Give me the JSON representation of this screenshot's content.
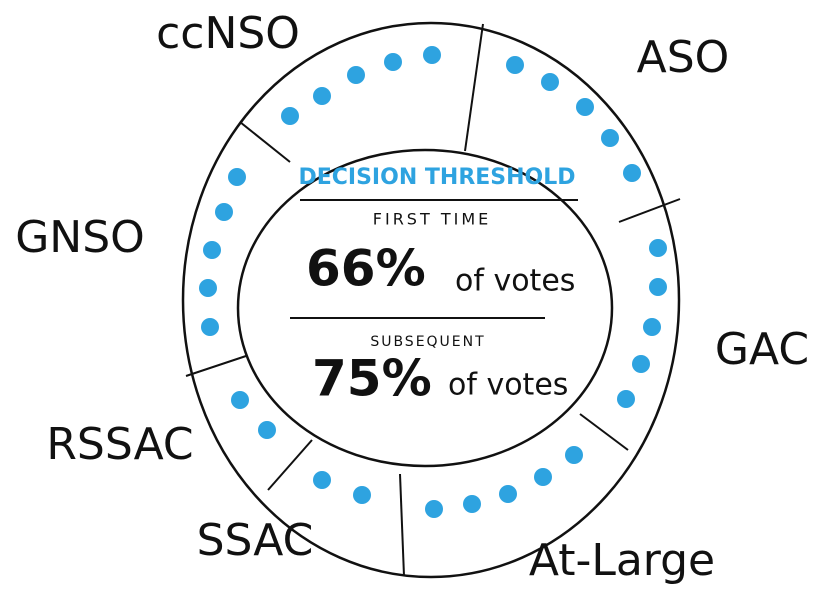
{
  "segments": [
    {
      "label": "ccNSO"
    },
    {
      "label": "ASO"
    },
    {
      "label": "GAC"
    },
    {
      "label": "At-Large"
    },
    {
      "label": "SSAC"
    },
    {
      "label": "RSSAC"
    },
    {
      "label": "GNSO"
    }
  ],
  "center": {
    "title": "DECISION THRESHOLD",
    "first": {
      "heading": "FIRST TIME",
      "value": "66%",
      "unit": "of votes"
    },
    "subsequent": {
      "heading": "SUBSEQUENT",
      "value": "75%",
      "unit": "of votes"
    }
  }
}
